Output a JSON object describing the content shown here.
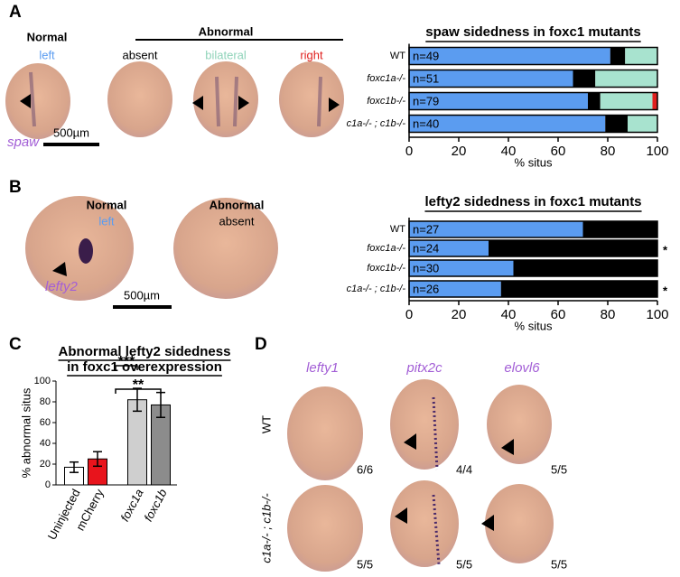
{
  "labels": {
    "panel_a": "A",
    "panel_b": "B",
    "panel_c": "C",
    "panel_d": "D",
    "a_normal": "Normal",
    "a_abnormal": "Abnormal",
    "a_left": "left",
    "a_absent": "absent",
    "a_bilateral": "bilateral",
    "a_right": "right",
    "a_gene": "spaw",
    "a_scale": "500µm",
    "b_normal": "Normal",
    "b_left": "left",
    "b_abnormal": "Abnormal",
    "b_absent": "absent",
    "b_gene": "lefty2",
    "b_scale": "500µm",
    "d_genes": [
      "lefty1",
      "pitx2c",
      "elovl6"
    ],
    "d_rows": [
      "WT",
      "c1a-/- ; c1b-/-"
    ],
    "d_counts": [
      [
        "6/6",
        "4/4",
        "5/5"
      ],
      [
        "5/5",
        "5/5",
        "5/5"
      ]
    ]
  },
  "chart_data": [
    {
      "type": "hbar-stacked",
      "title": "spaw sidedness in foxc1 mutants",
      "categories": [
        "WT",
        "foxc1a-/-",
        "foxc1b-/-",
        "c1a-/- ; c1b-/-"
      ],
      "annotations": [
        "n=49",
        "n=51",
        "n=79",
        "n=40"
      ],
      "series": [
        {
          "name": "left",
          "color": "#5b9cf0",
          "values": [
            81,
            66,
            72,
            79
          ]
        },
        {
          "name": "absent",
          "color": "#000000",
          "values": [
            6,
            9,
            5,
            9
          ]
        },
        {
          "name": "bilateral",
          "color": "#a8e3cf",
          "values": [
            13,
            25,
            21,
            12
          ]
        },
        {
          "name": "right",
          "color": "#e0201e",
          "values": [
            0,
            0,
            2,
            0
          ]
        }
      ],
      "xlim": [
        0,
        100
      ],
      "xticks": [
        0,
        20,
        40,
        60,
        80,
        100
      ],
      "xlabel": "% situs"
    },
    {
      "type": "hbar-stacked",
      "title": "lefty2 sidedness in foxc1 mutants",
      "categories": [
        "WT",
        "foxc1a-/-",
        "foxc1b-/-",
        "c1a-/- ; c1b-/-"
      ],
      "annotations": [
        "n=27",
        "n=24",
        "n=30",
        "n=26"
      ],
      "significance": [
        {
          "category": "foxc1a-/-",
          "label": "*"
        },
        {
          "category": "c1a-/- ; c1b-/-",
          "label": "*"
        }
      ],
      "series": [
        {
          "name": "left",
          "color": "#5b9cf0",
          "values": [
            70,
            32,
            42,
            37
          ]
        },
        {
          "name": "absent",
          "color": "#000000",
          "values": [
            30,
            68,
            58,
            63
          ]
        }
      ],
      "xlim": [
        0,
        100
      ],
      "xticks": [
        0,
        20,
        40,
        60,
        80,
        100
      ],
      "xlabel": "% situs"
    },
    {
      "type": "bar",
      "title": [
        "Abnormal lefty2 sidedness",
        "in foxc1 overexpression"
      ],
      "categories": [
        "Uninjected",
        "mCherry",
        "foxc1a",
        "foxc1b"
      ],
      "values": [
        17,
        25,
        82,
        77
      ],
      "errors": [
        5,
        7,
        11,
        12
      ],
      "colors": [
        "#ffffff",
        "#e8141c",
        "#cfcfcf",
        "#8c8c8c"
      ],
      "significance": [
        {
          "from": "mCherry",
          "to": "foxc1a",
          "label": "***"
        },
        {
          "from": "mCherry",
          "to": "foxc1b",
          "label": "**"
        }
      ],
      "ylim": [
        0,
        100
      ],
      "yticks": [
        0,
        20,
        40,
        60,
        80,
        100
      ],
      "ylabel": "% abnormal situs"
    }
  ]
}
